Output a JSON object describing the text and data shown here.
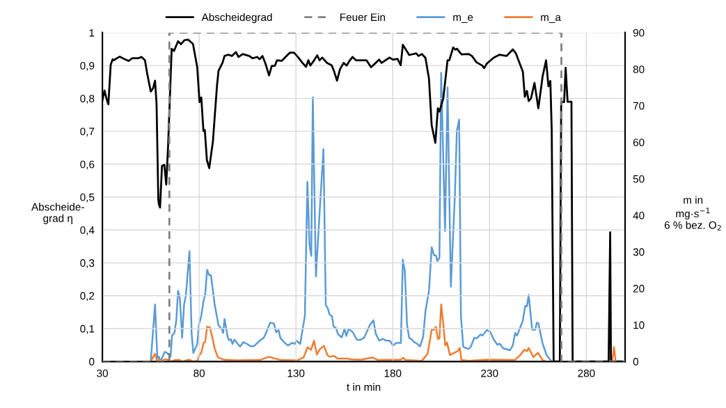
{
  "chart_data": {
    "type": "line",
    "xlabel": "t in min",
    "ylabel": "Abscheide-\ngrad η",
    "y2label": "m in\nmg·s$^{−1}$\n6 % bez. O$_{2}$",
    "xlim": [
      30,
      300
    ],
    "xticks": [
      30,
      80,
      130,
      180,
      230,
      280
    ],
    "ylim": [
      0,
      1
    ],
    "yticks": [
      0,
      {
        "value": 0.1,
        "label": "0,1"
      },
      {
        "value": 0.2,
        "label": "0,2"
      },
      {
        "value": 0.3,
        "label": "0,3"
      },
      {
        "value": 0.4,
        "label": "0,4"
      },
      {
        "value": 0.5,
        "label": "0,5"
      },
      {
        "value": 0.6,
        "label": "0,6"
      },
      {
        "value": 0.7,
        "label": "0,7"
      },
      {
        "value": 0.8,
        "label": "0,8"
      },
      {
        "value": 0.9,
        "label": "0,9"
      },
      1
    ],
    "y2lim": [
      0,
      90
    ],
    "y2ticks": [
      0,
      10,
      20,
      30,
      40,
      50,
      60,
      70,
      80,
      90
    ],
    "grid": true,
    "legend": "top",
    "marker": "none",
    "series": [
      {
        "name": "Abscheidegrad",
        "color": "#000000",
        "axis": "y",
        "line_style": "solid",
        "x": [
          30.1,
          31.1,
          32.3,
          33.1,
          34.3,
          35.3,
          35.8,
          38.9,
          41.3,
          43.6,
          45.4,
          48.4,
          50.2,
          52,
          53.2,
          55,
          56.2,
          57.2,
          58,
          58.9,
          59.2,
          59.8,
          60.8,
          62,
          63,
          64,
          65.8,
          67,
          69.1,
          70.6,
          72.4,
          74.2,
          76.8,
          79,
          80.2,
          81.1,
          82.2,
          82.9,
          84,
          85.2,
          87.1,
          89.2,
          90,
          92.1,
          93.1,
          95.1,
          96.9,
          99,
          100.3,
          102.5,
          105.9,
          107.5,
          110,
          111.2,
          112.7,
          114.3,
          116.1,
          117.5,
          119.1,
          120.2,
          122.6,
          126.8,
          129,
          131,
          133.4,
          135.2,
          136.4,
          137.4,
          139.4,
          141,
          142.2,
          143.6,
          146,
          148.4,
          149.6,
          151.2,
          152.7,
          154.6,
          156.2,
          157.4,
          159.2,
          161,
          164,
          166.4,
          168.8,
          173,
          174.2,
          178.3,
          180.1,
          182.5,
          184.1,
          185.2,
          188.5,
          192.1,
          193.3,
          195.1,
          196.9,
          198.7,
          200.1,
          202,
          203.3,
          204.1,
          206.1,
          208.3,
          209.2,
          211.2,
          212.4,
          213.2,
          215.5,
          219.1,
          220.9,
          223.2,
          226.2,
          227.2,
          228.6,
          232.2,
          235.2,
          238.8,
          242,
          243.6,
          247.2,
          248.2,
          249.3,
          250.2,
          251.4,
          253.2,
          255.2,
          257.4,
          259.2,
          260.4,
          261.4,
          262.1,
          263.1,
          266.3,
          267,
          268.5,
          269.3,
          270.3,
          272.3,
          272.9,
          291.5,
          292.3,
          292.7,
          300
        ],
        "values": [
          0.796,
          0.824,
          0.796,
          0.782,
          0.902,
          0.919,
          0.916,
          0.927,
          0.92,
          0.914,
          0.922,
          0.922,
          0.926,
          0.916,
          0.874,
          0.821,
          0.831,
          0.854,
          0.782,
          0.492,
          0.478,
          0.468,
          0.595,
          0.598,
          0.538,
          0.662,
          0.951,
          0.944,
          0.974,
          0.965,
          0.977,
          0.979,
          0.966,
          0.895,
          0.789,
          0.803,
          0.701,
          0.704,
          0.612,
          0.588,
          0.669,
          0.838,
          0.884,
          0.909,
          0.929,
          0.933,
          0.929,
          0.941,
          0.926,
          0.935,
          0.929,
          0.922,
          0.926,
          0.919,
          0.929,
          0.905,
          0.87,
          0.899,
          0.899,
          0.916,
          0.914,
          0.939,
          0.939,
          0.926,
          0.908,
          0.896,
          0.916,
          0.9,
          0.916,
          0.931,
          0.916,
          0.924,
          0.908,
          0.901,
          0.884,
          0.854,
          0.888,
          0.908,
          0.9,
          0.912,
          0.926,
          0.916,
          0.916,
          0.916,
          0.895,
          0.918,
          0.908,
          0.924,
          0.918,
          0.92,
          0.901,
          0.963,
          0.932,
          0.937,
          0.929,
          0.935,
          0.923,
          0.86,
          0.718,
          0.665,
          0.77,
          0.76,
          0.8,
          0.916,
          0.916,
          0.955,
          0.948,
          0.951,
          0.934,
          0.935,
          0.929,
          0.91,
          0.9,
          0.892,
          0.906,
          0.924,
          0.933,
          0.929,
          0.949,
          0.937,
          0.881,
          0.805,
          0.823,
          0.792,
          0.8,
          0.847,
          0.77,
          0.867,
          0.916,
          0.837,
          0.853,
          0.704,
          0,
          0,
          0.789,
          0.789,
          0.893,
          0.79,
          0.79,
          0,
          0,
          0.393,
          0,
          0
        ]
      },
      {
        "name": "Feuer Ein",
        "color": "#808080",
        "axis": "y",
        "line_style": "dashed",
        "x": [
          30,
          64.6,
          64.6,
          267.1,
          267.1,
          300
        ],
        "values": [
          0,
          0,
          1,
          1,
          0,
          0
        ]
      },
      {
        "name": "m_e",
        "color": "#5b9bd5",
        "axis": "y2",
        "line_style": "solid",
        "x": [
          30,
          55,
          57.2,
          58.4,
          59.2,
          60,
          62.2,
          63.3,
          65.2,
          66,
          67.2,
          68.2,
          69.1,
          70,
          71.2,
          72.2,
          73.1,
          75,
          76.1,
          77,
          79,
          79.9,
          81,
          82.3,
          83.1,
          84.1,
          85.2,
          86.1,
          88,
          90,
          91.6,
          92.4,
          93.1,
          94.8,
          95.5,
          96.4,
          97.2,
          98.2,
          100,
          101.1,
          102.9,
          104.7,
          106.5,
          108.3,
          111.3,
          113.4,
          114.9,
          116.7,
          118.6,
          119.8,
          121,
          122,
          123.8,
          125.8,
          128.2,
          129.4,
          130.2,
          132.2,
          134.6,
          135.9,
          137,
          137.9,
          138.7,
          140.3,
          142.4,
          144.2,
          145.4,
          146.4,
          147.4,
          148.6,
          149.4,
          150.6,
          151.8,
          153.6,
          155.1,
          156,
          157.2,
          159.4,
          161.4,
          163.2,
          165.2,
          168.2,
          170,
          171.2,
          173,
          174.8,
          176.6,
          178.4,
          180.1,
          181.9,
          184.2,
          185.2,
          186.2,
          187.4,
          188.5,
          189.7,
          190.9,
          192.7,
          194.1,
          195.7,
          196.9,
          198.7,
          200.1,
          201.3,
          202.3,
          203.1,
          204.1,
          205,
          207,
          208.3,
          210,
          212.1,
          213.1,
          214.3,
          215.2,
          216.4,
          219.1,
          220.3,
          222.1,
          223.3,
          225.4,
          226.3,
          228.6,
          230.4,
          232.2,
          234,
          235.2,
          237,
          240.6,
          242,
          243.2,
          244.2,
          247.2,
          248.4,
          249.3,
          250.2,
          252,
          253.6,
          254.4,
          255.2,
          257.4,
          259.5,
          262.1,
          300
        ],
        "values": [
          0,
          0,
          15.6,
          1,
          1.3,
          0,
          2.6,
          2.4,
          1.3,
          7.1,
          7.8,
          11.3,
          19.4,
          17.5,
          6.5,
          15.6,
          17.9,
          30.2,
          7.6,
          2.3,
          4.8,
          10.2,
          12.2,
          16.7,
          18.3,
          25.1,
          23.6,
          23.6,
          15.6,
          9.9,
          8.9,
          7.8,
          11.6,
          6.5,
          5.8,
          6.1,
          4.8,
          6,
          4.8,
          4.1,
          5.3,
          4.8,
          4.2,
          4.2,
          5.7,
          6.5,
          8.3,
          10.6,
          10.4,
          8,
          8.6,
          6.4,
          5.3,
          4.4,
          5.1,
          4.8,
          5.7,
          4.8,
          12.5,
          49.2,
          31.9,
          28.9,
          72.3,
          23.3,
          42.4,
          58.1,
          15.4,
          14.6,
          12.8,
          12.4,
          9.6,
          9.2,
          7.4,
          6.6,
          8.9,
          7,
          8.9,
          8,
          6,
          5.9,
          6.5,
          10,
          11.3,
          7.6,
          5.7,
          6.2,
          5.7,
          5.7,
          4.4,
          5.1,
          5.1,
          27.9,
          24.9,
          9.9,
          6.4,
          6.1,
          5.4,
          4.8,
          4.1,
          6.8,
          13.8,
          19.3,
          31.3,
          29.1,
          29,
          27.5,
          28.4,
          79,
          35.7,
          75,
          20.5,
          45.6,
          63.1,
          66.2,
          12.5,
          4,
          3.4,
          4,
          6.5,
          6.3,
          7.4,
          7.1,
          8.6,
          8.1,
          6,
          4.6,
          4.9,
          3.6,
          3.1,
          4.4,
          7.8,
          7.1,
          11.2,
          15.2,
          15.1,
          18.2,
          8.7,
          8.7,
          10.6,
          10.5,
          4.9,
          1.7,
          0,
          0
        ]
      },
      {
        "name": "m_a",
        "color": "#ed7d31",
        "axis": "y2",
        "line_style": "solid",
        "x": [
          30,
          55,
          57.2,
          58.4,
          59.2,
          60.4,
          62.2,
          63.3,
          65.2,
          67.6,
          70,
          71.2,
          74.8,
          77,
          79.1,
          80.1,
          81.1,
          82.3,
          83.1,
          84.1,
          85.5,
          86.7,
          88,
          89.7,
          92.7,
          99.3,
          111.3,
          116.1,
          118.6,
          122.2,
          130.6,
          133.9,
          136,
          137.8,
          139.3,
          140.8,
          142.4,
          144.4,
          146.2,
          147.4,
          149.7,
          151.5,
          156.3,
          158.1,
          164,
          169.4,
          172.4,
          184.2,
          185.4,
          186.6,
          195,
          198,
          200.1,
          201.3,
          202.3,
          203.3,
          204.1,
          205,
          206.1,
          207.1,
          208,
          209.5,
          211.9,
          213.7,
          214.6,
          215.5,
          219.1,
          228.6,
          243,
          245.4,
          248,
          249.3,
          250.2,
          252.6,
          255,
          257.4,
          259.2,
          293.3,
          294.3,
          295.1,
          300
        ],
        "values": [
          0,
          0,
          2.1,
          0,
          0.5,
          0,
          0.6,
          0.6,
          0,
          0.4,
          0.4,
          0,
          0.5,
          0,
          0.2,
          1.8,
          2.4,
          5.1,
          5.3,
          9.5,
          9.4,
          6.8,
          3.6,
          1.1,
          0.5,
          0.3,
          0.4,
          1.3,
          0.9,
          0.4,
          0.3,
          1.1,
          3.9,
          3.2,
          5.7,
          1.9,
          3.4,
          4.3,
          1.8,
          1.3,
          1.5,
          0.8,
          0.8,
          0.6,
          0.5,
          1.1,
          0.4,
          0.5,
          1,
          0.4,
          0.2,
          2.1,
          8.7,
          8.7,
          9.5,
          6.2,
          6.3,
          15.6,
          10.3,
          4.4,
          5.2,
          1.8,
          2.4,
          2.9,
          3.7,
          0.4,
          0.2,
          0.5,
          0.4,
          1.5,
          3.2,
          2.8,
          3.7,
          1.2,
          2.4,
          0.4,
          0,
          0,
          3.9,
          0,
          0
        ]
      }
    ]
  }
}
